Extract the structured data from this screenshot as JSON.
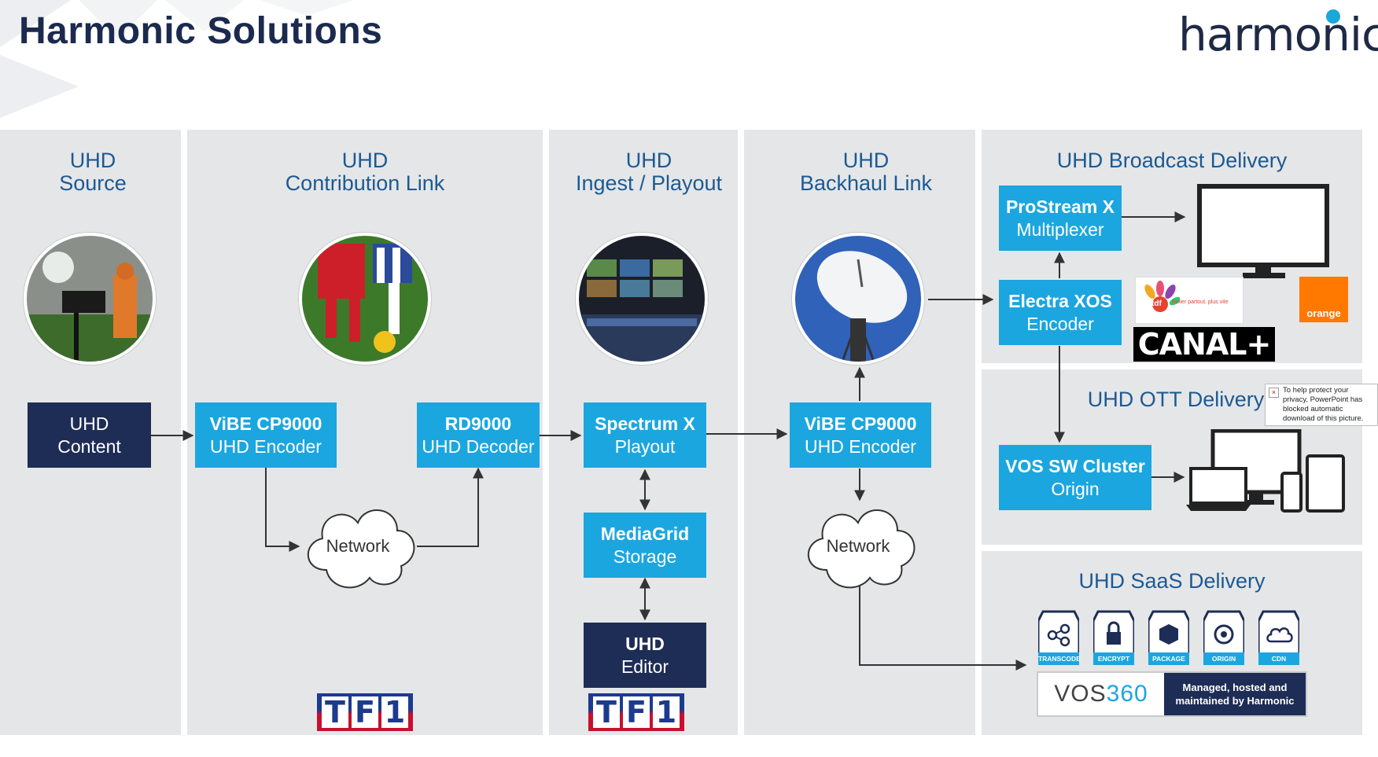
{
  "title": "Harmonic Solutions",
  "logo": "harmonic",
  "columns": {
    "source": [
      "UHD",
      "Source"
    ],
    "contribution": [
      "UHD",
      "Contribution Link"
    ],
    "ingest": [
      "UHD",
      "Ingest / Playout"
    ],
    "backhaul": [
      "UHD",
      "Backhaul Link"
    ],
    "broadcast": "UHD Broadcast Delivery",
    "ott": "UHD OTT Delivery",
    "saas": "UHD SaaS Delivery"
  },
  "boxes": {
    "uhd_content": [
      "UHD",
      "Content"
    ],
    "vibe_contrib": [
      "ViBE CP9000",
      "UHD Encoder"
    ],
    "rd9000": [
      "RD9000",
      "UHD Decoder"
    ],
    "spectrum": [
      "Spectrum X",
      "Playout"
    ],
    "mediagrid": [
      "MediaGrid",
      "Storage"
    ],
    "uhd_editor": [
      "UHD",
      "Editor"
    ],
    "vibe_backhaul": [
      "ViBE CP9000",
      "UHD Encoder"
    ],
    "prostream": [
      "ProStream X",
      "Multiplexer"
    ],
    "electra": [
      "Electra XOS",
      "Encoder"
    ],
    "vos_cluster": [
      "VOS SW Cluster",
      "Origin"
    ]
  },
  "network_labels": [
    "Network",
    "Network"
  ],
  "partner_logos": {
    "tf1": [
      "T",
      "F",
      "1"
    ],
    "canal": "CANAL+",
    "orange": "orange",
    "tdf": "tdf",
    "tdf_tagline": "Relier partout, plus vite"
  },
  "ppt_notice": "To help protect your privacy, PowerPoint has blocked automatic download of this picture.",
  "vos360": {
    "tiles": [
      "TRANSCODE",
      "ENCRYPT",
      "PACKAGE",
      "ORIGIN",
      "CDN"
    ],
    "brand_main": "VOS",
    "brand_num": "360",
    "managed": [
      "Managed, hosted and",
      "maintained by Harmonic"
    ]
  },
  "colors": {
    "panel": "#e5e6e8",
    "heading": "#1c5a93",
    "cyan": "#1ba6df",
    "navy": "#1e2d55",
    "title": "#1b2a4e"
  }
}
